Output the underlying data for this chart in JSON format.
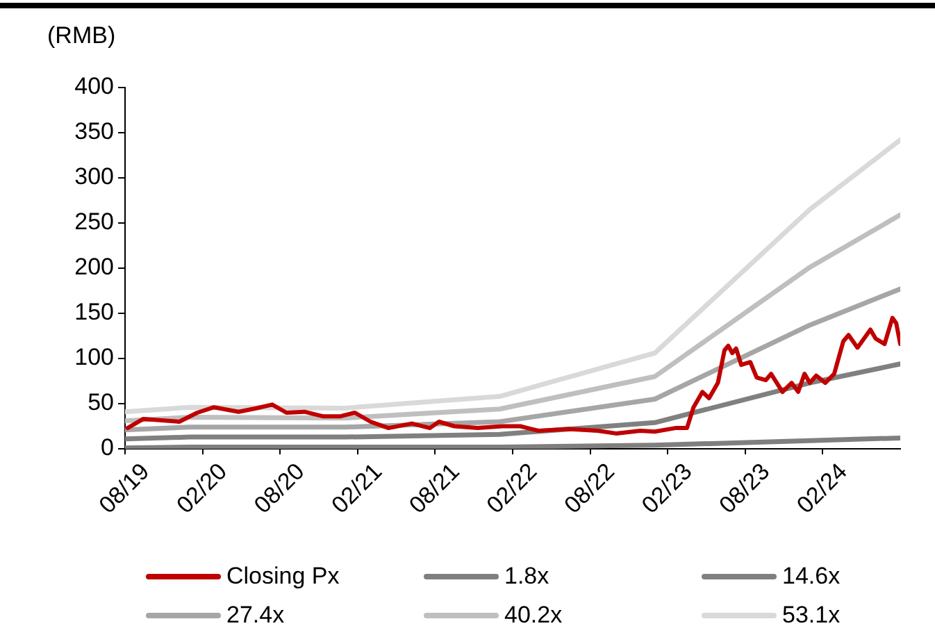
{
  "chart_data": {
    "type": "line",
    "ylabel": "(RMB)",
    "xlim": [
      "2019-08",
      "2024-08"
    ],
    "xticks": [
      {
        "value": "2019-08",
        "label": "08/19"
      },
      {
        "value": "2020-02",
        "label": "02/20"
      },
      {
        "value": "2020-08",
        "label": "08/20"
      },
      {
        "value": "2021-02",
        "label": "02/21"
      },
      {
        "value": "2021-08",
        "label": "08/21"
      },
      {
        "value": "2022-02",
        "label": "02/22"
      },
      {
        "value": "2022-08",
        "label": "08/22"
      },
      {
        "value": "2023-02",
        "label": "02/23"
      },
      {
        "value": "2023-08",
        "label": "08/23"
      },
      {
        "value": "2024-02",
        "label": "02/24"
      }
    ],
    "ylim": [
      0,
      400
    ],
    "yticks": [
      0,
      50,
      100,
      150,
      200,
      250,
      300,
      350,
      400
    ],
    "grid": false,
    "legend": "bottom",
    "marker": "none",
    "line_style": "solid",
    "series": [
      {
        "name": "Closing Px",
        "color": "#c00000",
        "x": [
          "2019-08-07",
          "2019-09-13",
          "2019-12-07",
          "2020-01-19",
          "2020-02-28",
          "2020-04-25",
          "2020-06-07",
          "2020-07-13",
          "2020-08-16",
          "2020-09-28",
          "2020-11-10",
          "2020-12-22",
          "2021-01-25",
          "2021-03-01",
          "2021-04-13",
          "2021-06-07",
          "2021-07-19",
          "2021-08-10",
          "2021-09-16",
          "2021-11-10",
          "2022-01-07",
          "2022-02-19",
          "2022-04-01",
          "2022-06-10",
          "2022-08-19",
          "2022-10-01",
          "2022-11-28",
          "2023-01-01",
          "2023-02-19",
          "2023-03-16",
          "2023-04-01",
          "2023-04-22",
          "2023-05-07",
          "2023-05-28",
          "2023-06-13",
          "2023-06-22",
          "2023-07-01",
          "2023-07-10",
          "2023-07-22",
          "2023-08-13",
          "2023-08-28",
          "2023-09-19",
          "2023-10-01",
          "2023-10-28",
          "2023-11-19",
          "2023-12-04",
          "2023-12-19",
          "2024-01-01",
          "2024-01-16",
          "2024-02-07",
          "2024-02-28",
          "2024-03-19",
          "2024-04-01",
          "2024-04-22",
          "2024-05-22",
          "2024-06-04",
          "2024-06-25",
          "2024-07-13",
          "2024-07-22",
          "2024-08-01"
        ],
        "values": [
          23,
          33,
          30,
          40,
          46,
          41,
          45,
          49,
          40,
          41,
          36,
          36,
          40,
          30,
          23,
          28,
          23,
          30,
          25,
          23,
          25,
          25,
          20,
          22,
          20,
          17,
          20,
          19,
          23,
          23,
          46,
          63,
          56,
          73,
          109,
          114,
          106,
          111,
          93,
          96,
          79,
          76,
          83,
          63,
          73,
          63,
          83,
          73,
          81,
          73,
          83,
          119,
          126,
          112,
          132,
          122,
          116,
          145,
          139,
          116
        ]
      },
      {
        "name": "1.8x",
        "color": "#7f7f7f",
        "x": [
          "2019-08",
          "2020-01",
          "2021-01",
          "2022-01",
          "2023-01",
          "2024-01",
          "2024-08"
        ],
        "values": [
          1,
          2,
          2,
          2,
          4,
          9,
          12
        ]
      },
      {
        "name": "14.6x",
        "color": "#808080",
        "x": [
          "2019-08",
          "2020-01",
          "2021-01",
          "2022-01",
          "2023-01",
          "2024-01",
          "2024-08"
        ],
        "values": [
          11,
          13,
          13,
          16,
          29,
          73,
          94
        ]
      },
      {
        "name": "27.4x",
        "color": "#a6a6a6",
        "x": [
          "2019-08",
          "2020-01",
          "2021-01",
          "2022-01",
          "2023-01",
          "2024-01",
          "2024-08"
        ],
        "values": [
          21,
          24,
          24,
          30,
          55,
          137,
          177
        ]
      },
      {
        "name": "40.2x",
        "color": "#bfbfbf",
        "x": [
          "2019-08",
          "2020-01",
          "2021-01",
          "2022-01",
          "2023-01",
          "2024-01",
          "2024-08"
        ],
        "values": [
          31,
          35,
          34,
          44,
          80,
          201,
          259
        ]
      },
      {
        "name": "53.1x",
        "color": "#d9d9d9",
        "x": [
          "2019-08",
          "2020-01",
          "2021-01",
          "2022-01",
          "2023-01",
          "2024-01",
          "2024-08"
        ],
        "values": [
          41,
          46,
          45,
          58,
          106,
          265,
          342
        ]
      }
    ]
  }
}
